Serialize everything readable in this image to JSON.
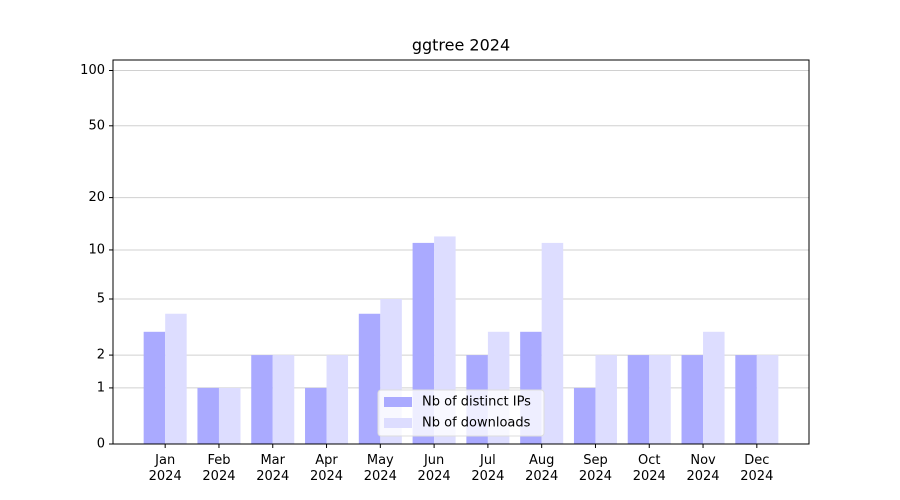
{
  "chart_data": {
    "type": "bar",
    "title": "ggtree 2024",
    "categories": [
      "Jan\n2024",
      "Feb\n2024",
      "Mar\n2024",
      "Apr\n2024",
      "May\n2024",
      "Jun\n2024",
      "Jul\n2024",
      "Aug\n2024",
      "Sep\n2024",
      "Oct\n2024",
      "Nov\n2024",
      "Dec\n2024"
    ],
    "series": [
      {
        "name": "Nb of distinct IPs",
        "color": "#aaaaff",
        "values": [
          3,
          1,
          2,
          1,
          4,
          11,
          2,
          3,
          1,
          2,
          2,
          2
        ]
      },
      {
        "name": "Nb of downloads",
        "color": "#ddddff",
        "values": [
          4,
          1,
          2,
          2,
          5,
          12,
          3,
          11,
          2,
          2,
          3,
          2
        ]
      }
    ],
    "yscale": "log1p",
    "ylim": [
      0,
      114
    ],
    "yticks": [
      0,
      1,
      2,
      5,
      10,
      20,
      50,
      100
    ],
    "grid": true,
    "legend": "lower center"
  }
}
